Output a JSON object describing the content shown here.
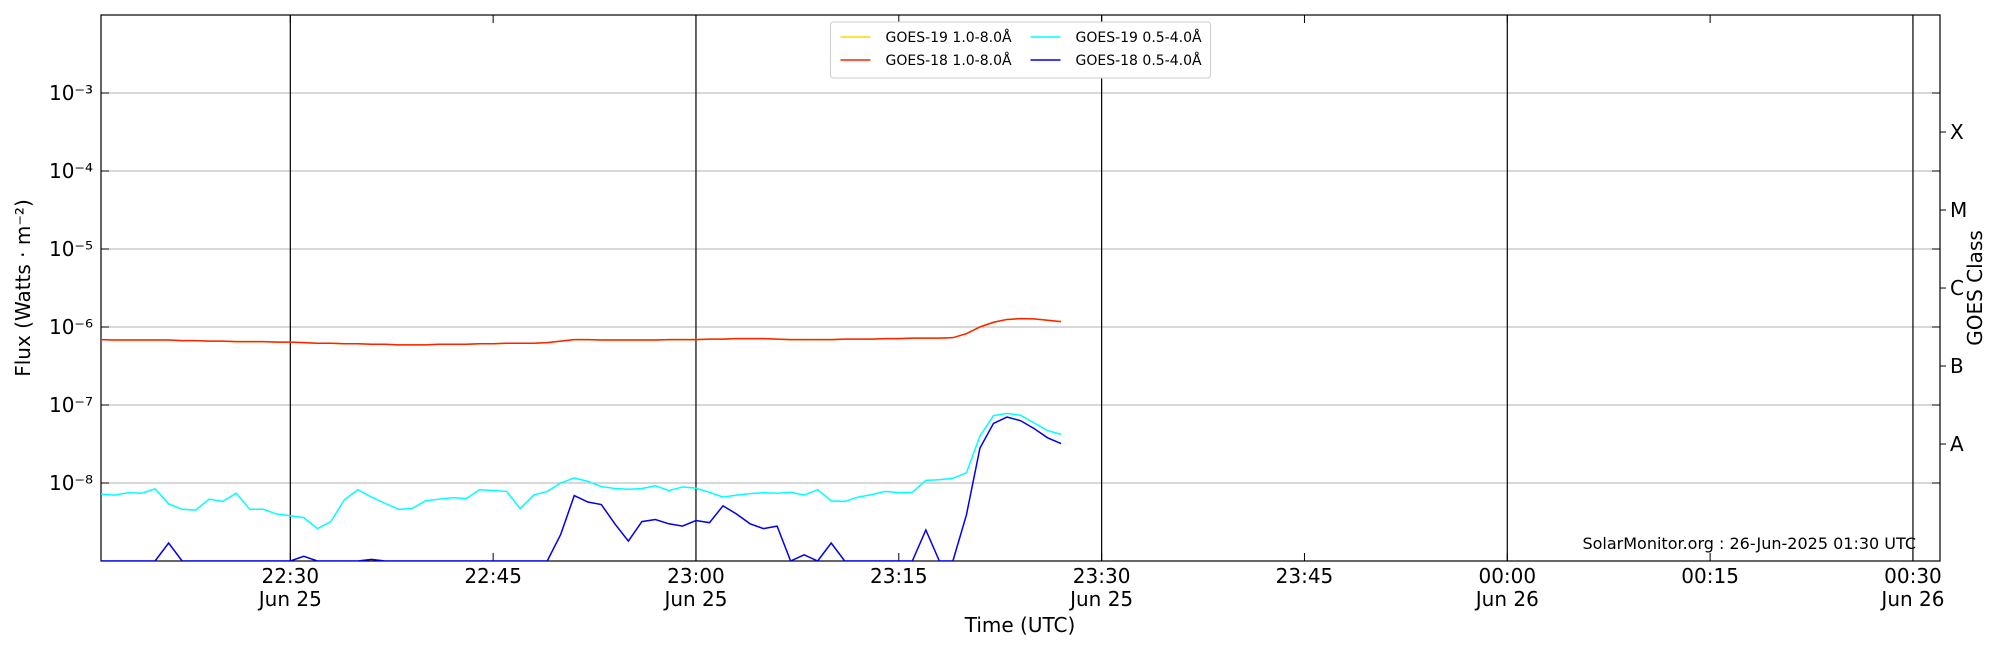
{
  "chart_data": {
    "type": "line",
    "xlabel": "Time (UTC)",
    "ylabel": "Flux (Watts · m⁻²)",
    "y2label": "GOES Class",
    "annotation": "SolarMonitor.org : 26-Jun-2025 01:30 UTC",
    "log_scale": true,
    "grid": true,
    "legend": "upper center",
    "legend_columns": 2,
    "x": [
      "Jun 25 22:16",
      "Jun 25 22:17",
      "Jun 25 22:18",
      "Jun 25 22:19",
      "Jun 25 22:20",
      "Jun 25 22:21",
      "Jun 25 22:22",
      "Jun 25 22:23",
      "Jun 25 22:24",
      "Jun 25 22:25",
      "Jun 25 22:26",
      "Jun 25 22:27",
      "Jun 25 22:28",
      "Jun 25 22:29",
      "Jun 25 22:30",
      "Jun 25 22:31",
      "Jun 25 22:32",
      "Jun 25 22:33",
      "Jun 25 22:34",
      "Jun 25 22:35",
      "Jun 25 22:36",
      "Jun 25 22:37",
      "Jun 25 22:38",
      "Jun 25 22:39",
      "Jun 25 22:40",
      "Jun 25 22:41",
      "Jun 25 22:42",
      "Jun 25 22:43",
      "Jun 25 22:44",
      "Jun 25 22:45",
      "Jun 25 22:46",
      "Jun 25 22:47",
      "Jun 25 22:48",
      "Jun 25 22:49",
      "Jun 25 22:50",
      "Jun 25 22:51",
      "Jun 25 22:52",
      "Jun 25 22:53",
      "Jun 25 22:54",
      "Jun 25 22:55",
      "Jun 25 22:56",
      "Jun 25 22:57",
      "Jun 25 22:58",
      "Jun 25 22:59",
      "Jun 25 23:00",
      "Jun 25 23:01",
      "Jun 25 23:02",
      "Jun 25 23:03",
      "Jun 25 23:04",
      "Jun 25 23:05",
      "Jun 25 23:06",
      "Jun 25 23:07",
      "Jun 25 23:08",
      "Jun 25 23:09",
      "Jun 25 23:10",
      "Jun 25 23:11",
      "Jun 25 23:12",
      "Jun 25 23:13",
      "Jun 25 23:14",
      "Jun 25 23:15",
      "Jun 25 23:16",
      "Jun 25 23:17",
      "Jun 25 23:18",
      "Jun 25 23:19",
      "Jun 25 23:20",
      "Jun 25 23:21",
      "Jun 25 23:22",
      "Jun 25 23:23",
      "Jun 25 23:24",
      "Jun 25 23:25",
      "Jun 25 23:26",
      "Jun 25 23:27"
    ],
    "xlim": [
      "Jun 25 22:16",
      "Jun 26 00:32"
    ],
    "xticks": [
      {
        "value": "Jun 25 22:30",
        "label": "22:30\nJun 25"
      },
      {
        "value": "Jun 25 22:45",
        "label": "22:45"
      },
      {
        "value": "Jun 25 23:00",
        "label": "23:00\nJun 25"
      },
      {
        "value": "Jun 25 23:15",
        "label": "23:15"
      },
      {
        "value": "Jun 25 23:30",
        "label": "23:30\nJun 25"
      },
      {
        "value": "Jun 25 23:45",
        "label": "23:45"
      },
      {
        "value": "Jun 26 00:00",
        "label": "00:00\nJun 26"
      },
      {
        "value": "Jun 26 00:15",
        "label": "00:15"
      },
      {
        "value": "Jun 26 00:30",
        "label": "00:30\nJun 26"
      }
    ],
    "ylim": [
      1e-09,
      0.01
    ],
    "yticks": [
      {
        "value": 1e-08,
        "label": "10⁻⁸"
      },
      {
        "value": 1e-07,
        "label": "10⁻⁷"
      },
      {
        "value": 1e-06,
        "label": "10⁻⁶"
      },
      {
        "value": 1e-05,
        "label": "10⁻⁵"
      },
      {
        "value": 0.0001,
        "label": "10⁻⁴"
      },
      {
        "value": 0.001,
        "label": "10⁻³"
      }
    ],
    "y2lim": [
      1e-09,
      0.01
    ],
    "y2ticks": [
      {
        "value": 3.16e-08,
        "label": "A"
      },
      {
        "value": 3.16e-07,
        "label": "B"
      },
      {
        "value": 3.16e-06,
        "label": "C"
      },
      {
        "value": 3.16e-05,
        "label": "M"
      },
      {
        "value": 0.000316,
        "label": "X"
      }
    ],
    "series": [
      {
        "name": "GOES-19 1.0-8.0Å",
        "color": "#ffd700",
        "values": [
          6.9e-07,
          6.8e-07,
          6.8e-07,
          6.8e-07,
          6.8e-07,
          6.8e-07,
          6.7e-07,
          6.7e-07,
          6.6e-07,
          6.6e-07,
          6.5e-07,
          6.5e-07,
          6.5e-07,
          6.4e-07,
          6.4e-07,
          6.3e-07,
          6.2e-07,
          6.2e-07,
          6.1e-07,
          6.1e-07,
          6e-07,
          6e-07,
          5.9e-07,
          5.9e-07,
          5.9e-07,
          6e-07,
          6e-07,
          6e-07,
          6.1e-07,
          6.1e-07,
          6.2e-07,
          6.2e-07,
          6.2e-07,
          6.3e-07,
          6.6e-07,
          6.9e-07,
          6.9e-07,
          6.8e-07,
          6.8e-07,
          6.8e-07,
          6.8e-07,
          6.8e-07,
          6.9e-07,
          6.9e-07,
          6.9e-07,
          7e-07,
          7e-07,
          7.1e-07,
          7.1e-07,
          7.1e-07,
          7e-07,
          6.9e-07,
          6.9e-07,
          6.9e-07,
          6.9e-07,
          7e-07,
          7e-07,
          7e-07,
          7.1e-07,
          7.1e-07,
          7.2e-07,
          7.2e-07,
          7.2e-07,
          7.3e-07,
          8.2e-07,
          1e-06,
          1.15e-06,
          1.25e-06,
          1.28e-06,
          1.27e-06,
          1.22e-06,
          1.17e-06
        ]
      },
      {
        "name": "GOES-18 1.0-8.0Å",
        "color": "#ff2000",
        "values": [
          6.9e-07,
          6.8e-07,
          6.8e-07,
          6.8e-07,
          6.8e-07,
          6.8e-07,
          6.7e-07,
          6.7e-07,
          6.6e-07,
          6.6e-07,
          6.5e-07,
          6.5e-07,
          6.5e-07,
          6.4e-07,
          6.4e-07,
          6.3e-07,
          6.2e-07,
          6.2e-07,
          6.1e-07,
          6.1e-07,
          6e-07,
          6e-07,
          5.9e-07,
          5.9e-07,
          5.9e-07,
          6e-07,
          6e-07,
          6e-07,
          6.1e-07,
          6.1e-07,
          6.2e-07,
          6.2e-07,
          6.2e-07,
          6.3e-07,
          6.6e-07,
          6.9e-07,
          6.9e-07,
          6.8e-07,
          6.8e-07,
          6.8e-07,
          6.8e-07,
          6.8e-07,
          6.9e-07,
          6.9e-07,
          6.9e-07,
          7e-07,
          7e-07,
          7.1e-07,
          7.1e-07,
          7.1e-07,
          7e-07,
          6.9e-07,
          6.9e-07,
          6.9e-07,
          6.9e-07,
          7e-07,
          7e-07,
          7e-07,
          7.1e-07,
          7.1e-07,
          7.2e-07,
          7.2e-07,
          7.2e-07,
          7.3e-07,
          8.2e-07,
          1e-06,
          1.15e-06,
          1.25e-06,
          1.28e-06,
          1.27e-06,
          1.22e-06,
          1.17e-06
        ]
      },
      {
        "name": "GOES-19 0.5-4.0Å",
        "color": "#00ffff",
        "values": [
          7.2e-09,
          7e-09,
          7.5e-09,
          7.4e-09,
          8.4e-09,
          5.4e-09,
          4.6e-09,
          4.5e-09,
          6.2e-09,
          5.8e-09,
          7.4e-09,
          4.6e-09,
          4.6e-09,
          4e-09,
          3.8e-09,
          3.6e-09,
          2.6e-09,
          3.2e-09,
          6.1e-09,
          8.2e-09,
          6.6e-09,
          5.5e-09,
          4.6e-09,
          4.7e-09,
          5.9e-09,
          6.2e-09,
          6.5e-09,
          6.3e-09,
          8.2e-09,
          8e-09,
          7.8e-09,
          4.7e-09,
          7e-09,
          7.8e-09,
          1e-08,
          1.16e-08,
          1.05e-08,
          9e-09,
          8.5e-09,
          8.3e-09,
          8.5e-09,
          9.2e-09,
          8e-09,
          8.9e-09,
          8.6e-09,
          7.6e-09,
          6.6e-09,
          7e-09,
          7.3e-09,
          7.5e-09,
          7.4e-09,
          7.6e-09,
          7e-09,
          8.2e-09,
          5.9e-09,
          5.8e-09,
          6.6e-09,
          7.1e-09,
          7.8e-09,
          7.5e-09,
          7.6e-09,
          1.08e-08,
          1.1e-08,
          1.15e-08,
          1.35e-08,
          4e-08,
          7.3e-08,
          7.8e-08,
          7.4e-08,
          5.9e-08,
          4.7e-08,
          4.2e-08
        ]
      },
      {
        "name": "GOES-18 0.5-4.0Å",
        "color": "#0000ee",
        "values": [
          1e-09,
          1e-09,
          1e-09,
          1e-09,
          1e-09,
          1.7e-09,
          1e-09,
          1e-09,
          1e-09,
          1e-09,
          1e-09,
          1e-09,
          1e-09,
          1e-09,
          1e-09,
          1.15e-09,
          1e-09,
          1e-09,
          1e-09,
          1e-09,
          1.05e-09,
          1e-09,
          1e-09,
          1e-09,
          1e-09,
          1e-09,
          1e-09,
          1e-09,
          1e-09,
          1e-09,
          1e-09,
          1e-09,
          1e-09,
          1e-09,
          2.2e-09,
          6.9e-09,
          5.7e-09,
          5.3e-09,
          3e-09,
          1.8e-09,
          3.2e-09,
          3.4e-09,
          3e-09,
          2.8e-09,
          3.3e-09,
          3.1e-09,
          5.1e-09,
          4e-09,
          3e-09,
          2.6e-09,
          2.8e-09,
          1e-09,
          1.2e-09,
          1e-09,
          1.7e-09,
          1e-09,
          1e-09,
          1e-09,
          1e-09,
          1e-09,
          1e-09,
          2.5e-09,
          1e-09,
          1e-09,
          3.9e-09,
          2.8e-08,
          5.8e-08,
          7e-08,
          6.3e-08,
          5e-08,
          3.8e-08,
          3.2e-08
        ]
      }
    ]
  }
}
